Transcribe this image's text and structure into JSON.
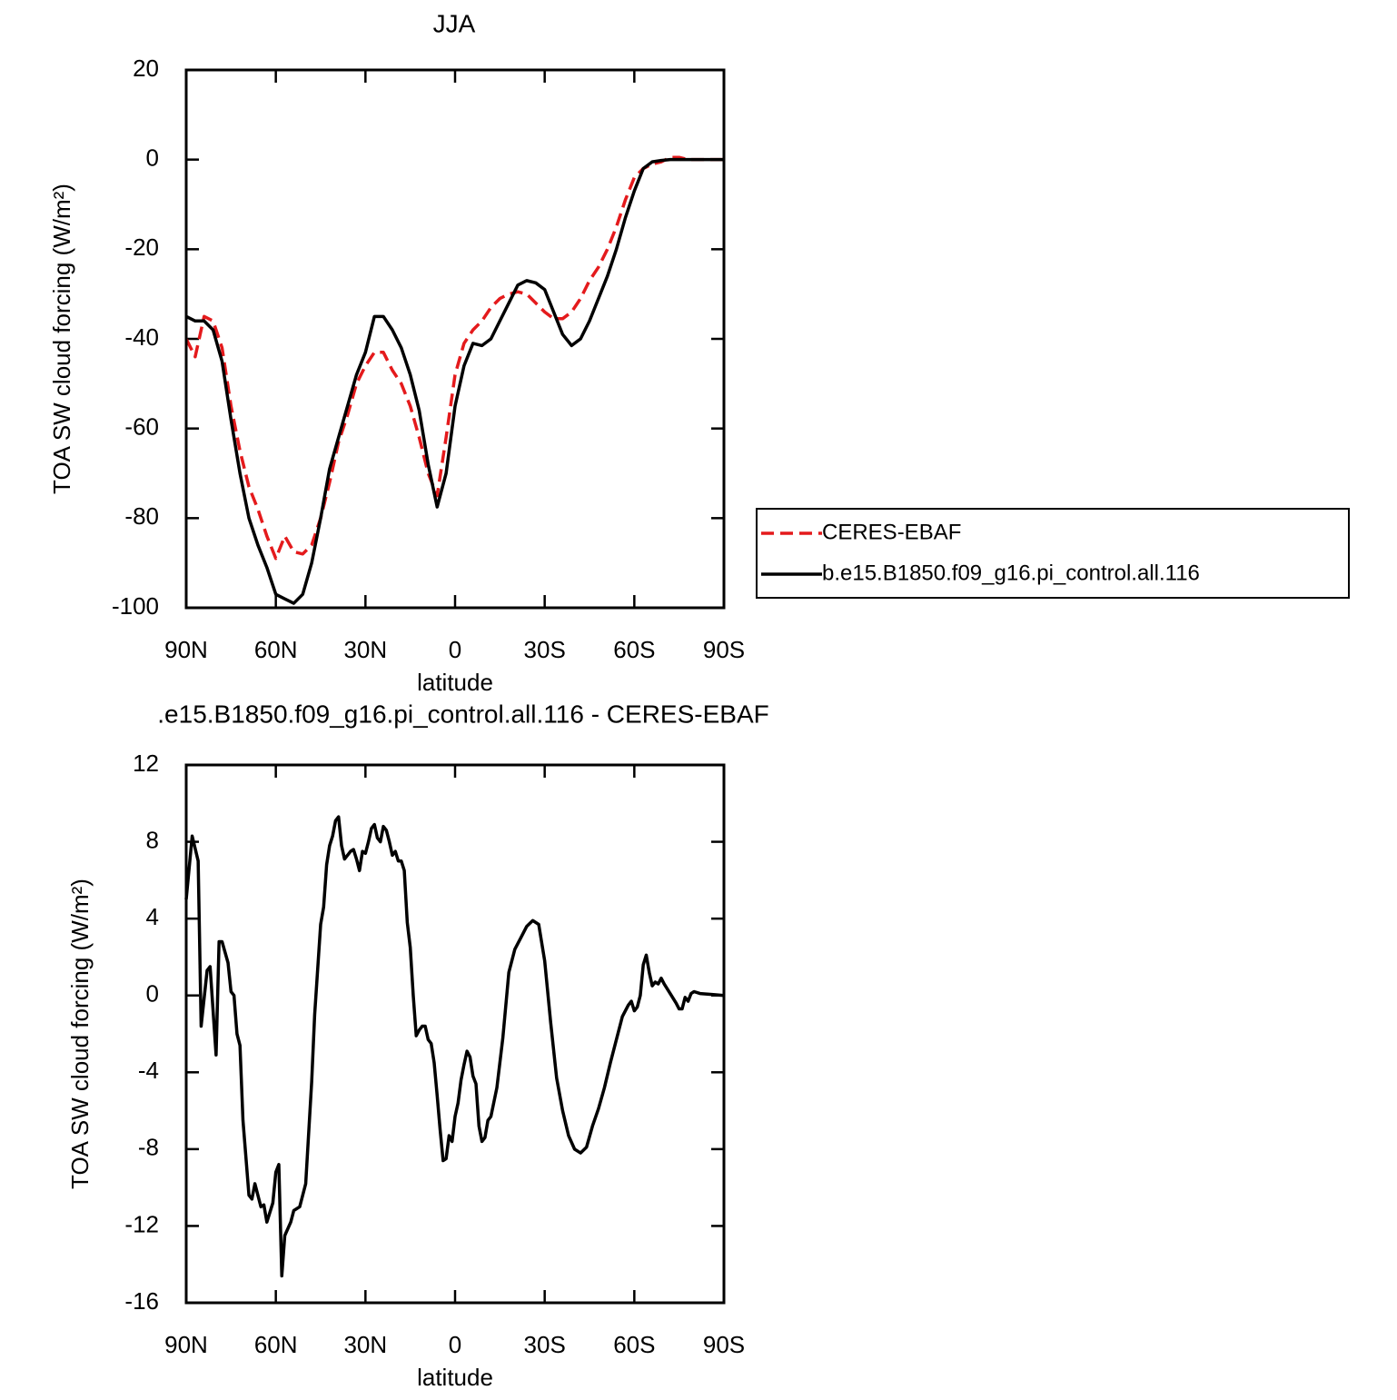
{
  "chart_data": [
    {
      "type": "line",
      "title": "JJA",
      "xlabel": "latitude",
      "ylabel": "TOA SW cloud forcing (W/m²)",
      "x": [
        90,
        87,
        84,
        81,
        78,
        75,
        72,
        69,
        66,
        63,
        60,
        57,
        54,
        51,
        48,
        45,
        42,
        39,
        36,
        33,
        30,
        27,
        24,
        21,
        18,
        15,
        12,
        9,
        6,
        3,
        0,
        -3,
        -6,
        -9,
        -12,
        -15,
        -18,
        -21,
        -24,
        -27,
        -30,
        -33,
        -36,
        -39,
        -42,
        -45,
        -48,
        -51,
        -54,
        -57,
        -60,
        -63,
        -66,
        -69,
        -72,
        -75,
        -78,
        -81,
        -84,
        -87,
        -90
      ],
      "xlim": [
        90,
        -90
      ],
      "xticks": [
        {
          "value": 90,
          "label": "90N"
        },
        {
          "value": 60,
          "label": "60N"
        },
        {
          "value": 30,
          "label": "30N"
        },
        0,
        {
          "value": -30,
          "label": "30S"
        },
        {
          "value": -60,
          "label": "60S"
        },
        {
          "value": -90,
          "label": "90S"
        }
      ],
      "ylim": [
        -100,
        20
      ],
      "yticks": [
        -100,
        -80,
        -60,
        -40,
        -20,
        0,
        20
      ],
      "legend": "right",
      "series": [
        {
          "name": "CERES-EBAF",
          "color": "#e41a1c",
          "dash": "dashed",
          "values": [
            -40,
            -44,
            -35,
            -36,
            -42,
            -55,
            -65,
            -73,
            -78,
            -84,
            -89,
            -84,
            -87.5,
            -88,
            -86,
            -80,
            -72,
            -63,
            -57,
            -50,
            -46,
            -43,
            -43,
            -47,
            -50,
            -55,
            -62,
            -70,
            -75,
            -62,
            -48,
            -41,
            -38,
            -36,
            -33,
            -31,
            -30,
            -29.5,
            -30,
            -32,
            -34,
            -35.5,
            -35.5,
            -34,
            -31,
            -27,
            -24,
            -20,
            -15,
            -9,
            -4,
            -2,
            -1,
            -0.5,
            0.5,
            0.5,
            0,
            0,
            0,
            0,
            0
          ]
        },
        {
          "name": "b.e15.B1850.f09_g16.pi_control.all.116",
          "color": "#000000",
          "dash": "solid",
          "values": [
            -35,
            -36,
            -36,
            -38,
            -45,
            -58,
            -70,
            -80,
            -86,
            -91,
            -97,
            -98,
            -99,
            -97,
            -90,
            -80,
            -69,
            -62,
            -55,
            -48,
            -43,
            -35,
            -35,
            -38,
            -42,
            -48,
            -56,
            -68,
            -77.5,
            -70,
            -55,
            -46,
            -41,
            -41.5,
            -40,
            -36,
            -32,
            -28,
            -27,
            -27.5,
            -29,
            -34,
            -39,
            -41.5,
            -40,
            -36,
            -31,
            -26,
            -20,
            -13,
            -7,
            -2,
            -0.5,
            -0.2,
            0,
            0,
            0,
            0,
            0,
            0,
            0
          ]
        }
      ]
    },
    {
      "type": "line",
      "title": ".e15.B1850.f09_g16.pi_control.all.116 - CERES-EBAF",
      "xlabel": "latitude",
      "ylabel": "TOA SW cloud forcing (W/m²)",
      "x": [
        90,
        88,
        86,
        85,
        83,
        82,
        80,
        79,
        78,
        76,
        75,
        74,
        73,
        72,
        71,
        69,
        68,
        67,
        65,
        64,
        63,
        61,
        60,
        59,
        58,
        57,
        55,
        54,
        52,
        50,
        48,
        47,
        45,
        44,
        43,
        42,
        41,
        40,
        39,
        38,
        37,
        35,
        34,
        33,
        32,
        31,
        30,
        29,
        28,
        27,
        26,
        25,
        24,
        23,
        22,
        21,
        20,
        19,
        18,
        17,
        16,
        15,
        14,
        13,
        12,
        11,
        10,
        9,
        8,
        7,
        6,
        5,
        4,
        3,
        2,
        1,
        0,
        -1,
        -2,
        -3,
        -4,
        -5,
        -6,
        -7,
        -8,
        -9,
        -10,
        -11,
        -12,
        -14,
        -16,
        -18,
        -20,
        -22,
        -24,
        -26,
        -28,
        -30,
        -32,
        -34,
        -36,
        -38,
        -40,
        -42,
        -44,
        -46,
        -48,
        -50,
        -52,
        -54,
        -56,
        -58,
        -59,
        -60,
        -61,
        -62,
        -63,
        -64,
        -65,
        -66,
        -67,
        -68,
        -69,
        -70,
        -72,
        -74,
        -75,
        -76,
        -77,
        -78,
        -79,
        -80,
        -82,
        -86,
        -90
      ],
      "xlim": [
        90,
        -90
      ],
      "xticks": [
        {
          "value": 90,
          "label": "90N"
        },
        {
          "value": 60,
          "label": "60N"
        },
        {
          "value": 30,
          "label": "30N"
        },
        0,
        {
          "value": -30,
          "label": "30S"
        },
        {
          "value": -60,
          "label": "60S"
        },
        {
          "value": -90,
          "label": "90S"
        }
      ],
      "ylim": [
        -16,
        12
      ],
      "yticks": [
        -16,
        -12,
        -8,
        -4,
        0,
        4,
        8,
        12
      ],
      "series": [
        {
          "color": "#000000",
          "dash": "solid",
          "values": [
            5,
            8.3,
            7,
            -1.6,
            1.3,
            1.5,
            -3.1,
            2.8,
            2.8,
            1.7,
            0.2,
            0,
            -2,
            -2.6,
            -6.5,
            -10.4,
            -10.6,
            -9.8,
            -11,
            -10.9,
            -11.8,
            -10.8,
            -9.2,
            -8.8,
            -14.6,
            -12.5,
            -11.8,
            -11.2,
            -11,
            -9.8,
            -4.5,
            -1,
            3.7,
            4.6,
            6.8,
            7.8,
            8.3,
            9.1,
            9.3,
            7.8,
            7.1,
            7.5,
            7.6,
            7.1,
            6.5,
            7.5,
            7.4,
            8,
            8.7,
            8.9,
            8.2,
            8,
            8.8,
            8.6,
            8,
            7.3,
            7.5,
            7,
            7,
            6.5,
            3.8,
            2.5,
            0,
            -2.1,
            -1.8,
            -1.6,
            -1.6,
            -2.3,
            -2.5,
            -3.5,
            -5.2,
            -7,
            -8.6,
            -8.5,
            -7.3,
            -7.6,
            -6.3,
            -5.6,
            -4.4,
            -3.6,
            -2.9,
            -3.2,
            -4.2,
            -4.6,
            -6.8,
            -7.6,
            -7.4,
            -6.5,
            -6.3,
            -4.8,
            -2.2,
            1.2,
            2.4,
            3,
            3.6,
            3.9,
            3.7,
            1.8,
            -1.4,
            -4.3,
            -6,
            -7.3,
            -8,
            -8.2,
            -7.9,
            -6.8,
            -5.9,
            -4.8,
            -3.5,
            -2.3,
            -1.1,
            -0.5,
            -0.3,
            -0.8,
            -0.6,
            0,
            1.6,
            2.1,
            1.2,
            0.5,
            0.7,
            0.6,
            0.9,
            0.6,
            0.1,
            -0.4,
            -0.7,
            -0.7,
            -0.1,
            -0.3,
            0.1,
            0.2,
            0.1,
            0.05,
            0
          ]
        }
      ]
    }
  ]
}
